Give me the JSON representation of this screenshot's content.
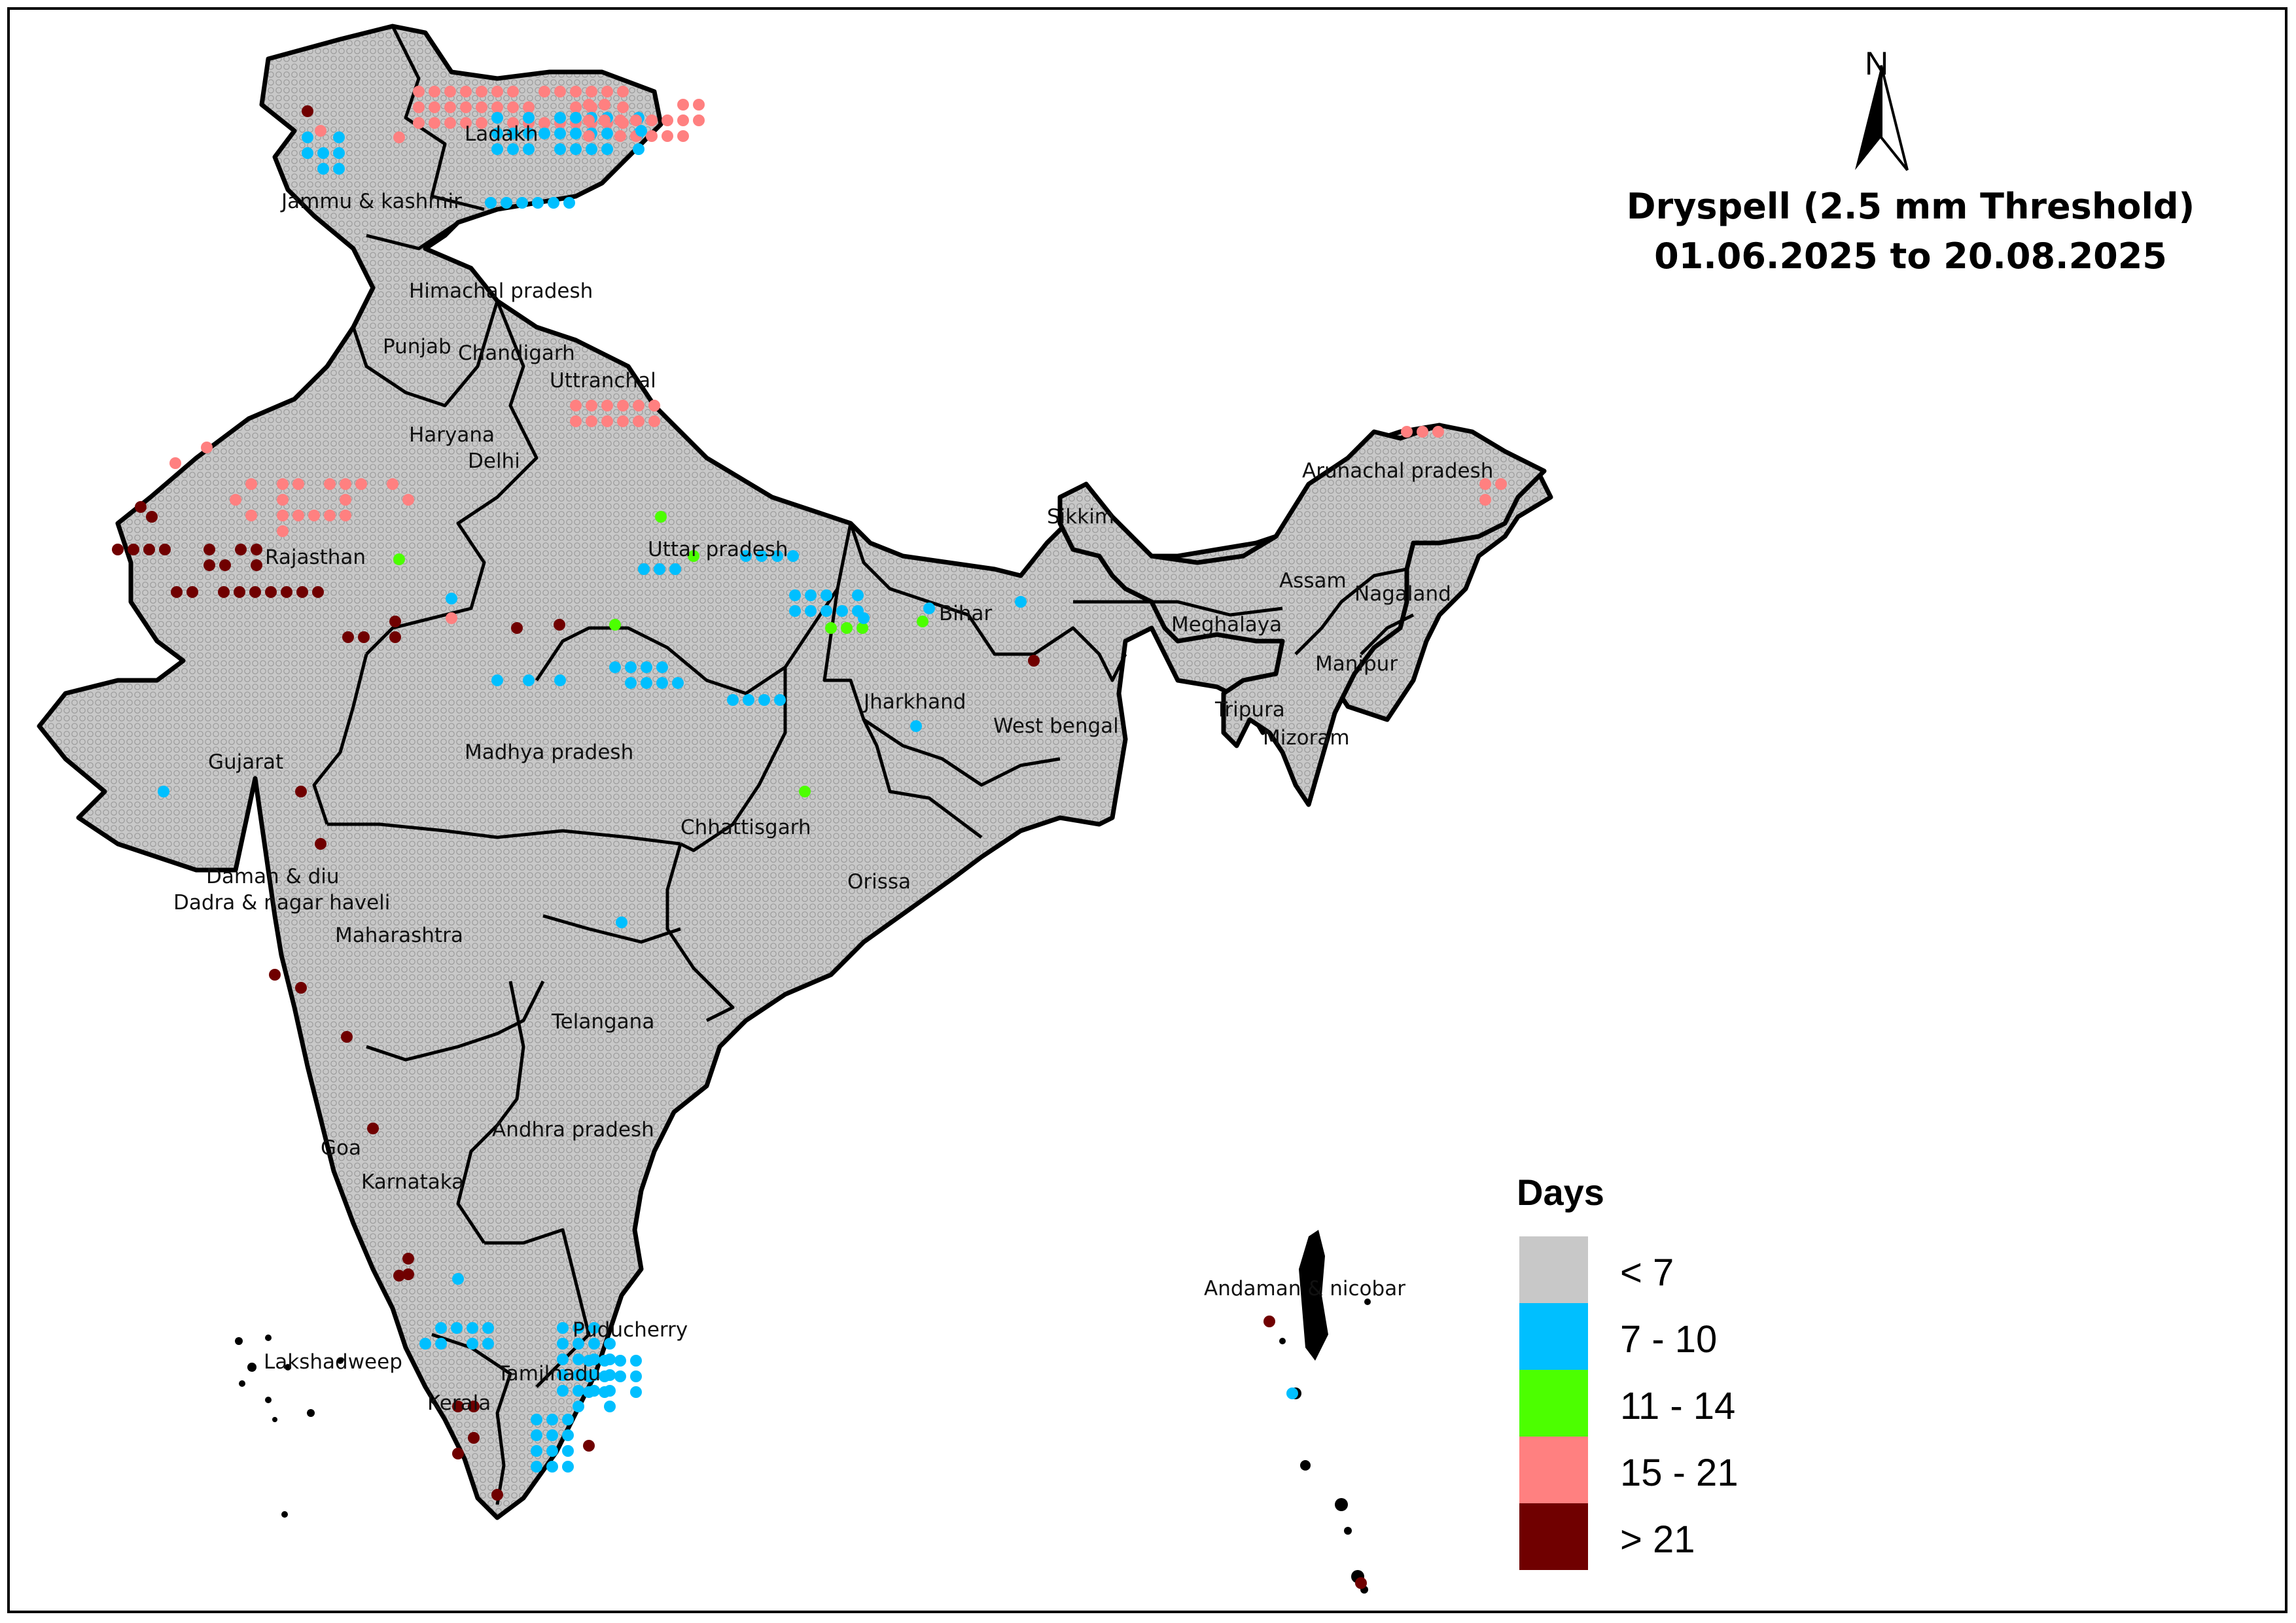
{
  "map": {
    "title_line1": "Dryspell (2.5 mm Threshold)",
    "title_line2": "01.06.2025 to 20.08.2025",
    "north_label": "N",
    "background_color": "#c8c8c8",
    "border_color": "#000000"
  },
  "legend": {
    "title": "Days",
    "items": [
      {
        "label": "< 7",
        "color": "#c8c8c8"
      },
      {
        "label": "7 - 10",
        "color": "#00bfff"
      },
      {
        "label": "11 - 14",
        "color": "#4cff00"
      },
      {
        "label": "15 - 21",
        "color": "#ff8080"
      },
      {
        "label": "> 21",
        "color": "#700000"
      }
    ]
  },
  "states": [
    {
      "key": "ladakh",
      "name": "Ladakh"
    },
    {
      "key": "jk",
      "name": "Jammu & kashmir"
    },
    {
      "key": "hp",
      "name": "Himachal pradesh"
    },
    {
      "key": "punjab",
      "name": "Punjab"
    },
    {
      "key": "chandigarh",
      "name": "Chandigarh"
    },
    {
      "key": "uttaranchal",
      "name": "Uttranchal"
    },
    {
      "key": "haryana",
      "name": "Haryana"
    },
    {
      "key": "delhi",
      "name": "Delhi"
    },
    {
      "key": "rajasthan",
      "name": "Rajasthan"
    },
    {
      "key": "up",
      "name": "Uttar pradesh"
    },
    {
      "key": "sikkim",
      "name": "Sikkim"
    },
    {
      "key": "arunachal",
      "name": "Arunachal pradesh"
    },
    {
      "key": "assam",
      "name": "Assam"
    },
    {
      "key": "nagaland",
      "name": "Nagaland"
    },
    {
      "key": "meghalaya",
      "name": "Meghalaya"
    },
    {
      "key": "bihar",
      "name": "Bihar"
    },
    {
      "key": "manipur",
      "name": "Manipur"
    },
    {
      "key": "tripura",
      "name": "Tripura"
    },
    {
      "key": "mizoram",
      "name": "Mizoram"
    },
    {
      "key": "jharkhand",
      "name": "Jharkhand"
    },
    {
      "key": "wb",
      "name": "West bengal"
    },
    {
      "key": "gujarat",
      "name": "Gujarat"
    },
    {
      "key": "mp",
      "name": "Madhya pradesh"
    },
    {
      "key": "chhattisgarh",
      "name": "Chhattisgarh"
    },
    {
      "key": "orissa",
      "name": "Orissa"
    },
    {
      "key": "daman",
      "name": "Daman & diu"
    },
    {
      "key": "dadra",
      "name": "Dadra & nagar haveli"
    },
    {
      "key": "maharashtra",
      "name": "Maharashtra"
    },
    {
      "key": "telangana",
      "name": "Telangana"
    },
    {
      "key": "ap",
      "name": "Andhra pradesh"
    },
    {
      "key": "goa",
      "name": "Goa"
    },
    {
      "key": "karnataka",
      "name": "Karnataka"
    },
    {
      "key": "andaman",
      "name": "Andaman & nicobar"
    },
    {
      "key": "puducherry",
      "name": "Puducherry"
    },
    {
      "key": "lakshadweep",
      "name": "Lakshadweep"
    },
    {
      "key": "tamilnadu",
      "name": "Tamilnadu"
    },
    {
      "key": "kerala",
      "name": "Kerala"
    }
  ]
}
